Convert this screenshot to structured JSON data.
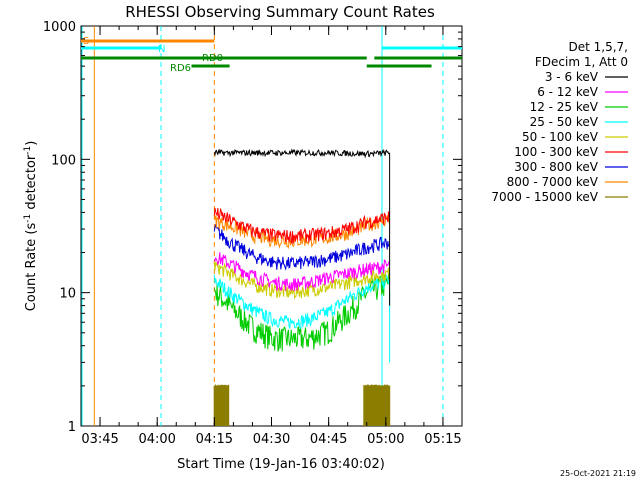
{
  "page": {
    "footer_date": "25-Oct-2021 21:19"
  },
  "chart_data": {
    "type": "line",
    "title": "RHESSI Observing Summary Count Rates",
    "xlabel": "Start Time (19-Jan-16 03:40:02)",
    "ylabel_main": "Count Rate (s",
    "ylabel_sup1": "-1",
    "ylabel_mid": " detector",
    "ylabel_sup2": "-1",
    "ylabel_end": ")",
    "y_scale": "log",
    "ylim": [
      1,
      1000
    ],
    "xlim_minutes": [
      0,
      100
    ],
    "x_origin": "03:40",
    "x_ticks": [
      {
        "minute": 5,
        "label": "03:45"
      },
      {
        "minute": 20,
        "label": "04:00"
      },
      {
        "minute": 35,
        "label": "04:15"
      },
      {
        "minute": 50,
        "label": "04:30"
      },
      {
        "minute": 65,
        "label": "04:45"
      },
      {
        "minute": 80,
        "label": "05:00"
      },
      {
        "minute": 95,
        "label": "05:15"
      }
    ],
    "y_ticks": [
      {
        "value": 1,
        "label": "1"
      },
      {
        "value": 10,
        "label": "10"
      },
      {
        "value": 100,
        "label": "100"
      },
      {
        "value": 1000,
        "label": "1000"
      }
    ],
    "legend_placement": "right",
    "legend_header": [
      "Det 1,5,7,",
      "FDecim 1, Att 0"
    ],
    "series": [
      {
        "name": "3 - 6 keV",
        "color": "#000000",
        "t_start": 35,
        "t_end": 81,
        "x": [
          35,
          50,
          65,
          75,
          81
        ],
        "y": [
          112,
          112,
          112,
          110,
          112
        ]
      },
      {
        "name": "6 - 12 keV",
        "color": "#ff00ff",
        "t_start": 35,
        "t_end": 81,
        "x": [
          35,
          40,
          45,
          50,
          55,
          60,
          65,
          70,
          75,
          81
        ],
        "y": [
          19,
          16,
          13.5,
          12,
          11.5,
          12,
          13,
          14,
          15,
          16
        ]
      },
      {
        "name": "12 - 25 keV",
        "color": "#00cc00",
        "t_start": 35,
        "t_end": 81,
        "x": [
          35,
          40,
          45,
          50,
          55,
          60,
          65,
          70,
          75,
          81
        ],
        "y": [
          10.5,
          7.5,
          5.5,
          4.6,
          4.5,
          4.6,
          5.2,
          7,
          10,
          12
        ]
      },
      {
        "name": "25 - 50 keV",
        "color": "#00ffff",
        "t_start": 35,
        "t_end": 81,
        "x": [
          35,
          40,
          45,
          50,
          55,
          60,
          65,
          70,
          75,
          81
        ],
        "y": [
          12.5,
          9.5,
          7.5,
          6.3,
          6,
          6.3,
          7.2,
          9,
          11,
          12.5
        ]
      },
      {
        "name": "50 - 100 keV",
        "color": "#cccc00",
        "t_start": 35,
        "t_end": 81,
        "x": [
          35,
          40,
          45,
          50,
          55,
          60,
          65,
          70,
          75,
          81
        ],
        "y": [
          16,
          13.5,
          11.5,
          10.5,
          10,
          10.5,
          11,
          12,
          13,
          14
        ]
      },
      {
        "name": "100 - 300 keV",
        "color": "#ff0000",
        "t_start": 35,
        "t_end": 81,
        "x": [
          35,
          40,
          45,
          50,
          55,
          60,
          65,
          70,
          75,
          81
        ],
        "y": [
          40,
          34,
          29,
          27,
          26.5,
          27,
          28,
          30,
          34,
          37
        ]
      },
      {
        "name": "300 - 800 keV",
        "color": "#0000dd",
        "t_start": 35,
        "t_end": 81,
        "x": [
          35,
          40,
          45,
          50,
          55,
          60,
          65,
          70,
          75,
          81
        ],
        "y": [
          30,
          23,
          19,
          17,
          16.5,
          17,
          18,
          19.5,
          22,
          24
        ]
      },
      {
        "name": "800 - 7000 keV",
        "color": "#ff8800",
        "t_start": 35,
        "t_end": 81,
        "x": [
          35,
          40,
          45,
          50,
          55,
          60,
          65,
          70,
          75,
          81
        ],
        "y": [
          35,
          31,
          27,
          25,
          24.5,
          25,
          26,
          28,
          32,
          36
        ]
      },
      {
        "name": "7000 - 15000 keV",
        "color": "#8b7d00",
        "t_start": 35,
        "t_end": 81,
        "x": [
          35,
          50,
          65,
          81
        ],
        "y": [
          1,
          1,
          1,
          1
        ]
      }
    ],
    "flags": [
      {
        "label": "S",
        "color": "#ff8800",
        "segments": [
          [
            0,
            35
          ]
        ]
      },
      {
        "label": "N",
        "color": "#00ffff",
        "segments": [
          [
            0,
            21
          ],
          [
            79,
            100
          ]
        ]
      },
      {
        "label": "RD0",
        "color": "#008800",
        "segments": [
          [
            0,
            75
          ],
          [
            77,
            100
          ]
        ]
      },
      {
        "label": "RD6",
        "color": "#008800",
        "segments": [
          [
            29,
            39
          ],
          [
            75,
            92
          ]
        ]
      }
    ],
    "v_markers": [
      {
        "minute": 3.5,
        "color": "#ff8800",
        "style": "solid"
      },
      {
        "minute": 21,
        "color": "#00ffff",
        "style": "dashed"
      },
      {
        "minute": 35,
        "color": "#ff8800",
        "style": "dashed"
      },
      {
        "minute": 79,
        "color": "#00ffff",
        "style": "solid"
      },
      {
        "minute": 95,
        "color": "#00ffff",
        "style": "dashed"
      }
    ],
    "cyan_segment_low": {
      "minute": 81,
      "y_from": 10,
      "y_to": 3
    }
  }
}
